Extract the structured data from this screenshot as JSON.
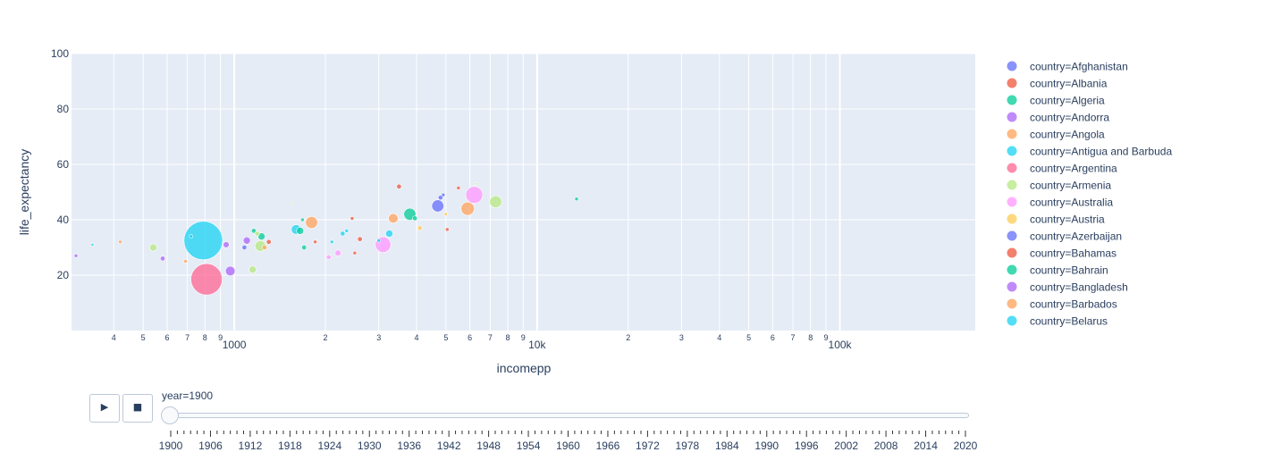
{
  "chart_data": {
    "type": "scatter",
    "xlabel": "incomepp",
    "ylabel": "life_expectancy",
    "x_scale": "log",
    "xlim": [
      290,
      280000
    ],
    "ylim": [
      0,
      100
    ],
    "y_ticks": [
      20,
      40,
      60,
      80,
      100
    ],
    "x_major_ticks": [
      {
        "value": 1000,
        "label": "1000"
      },
      {
        "value": 10000,
        "label": "10k"
      },
      {
        "value": 100000,
        "label": "100k"
      }
    ],
    "x_minor_ticks": [
      {
        "value": 400,
        "label": "4"
      },
      {
        "value": 500,
        "label": "5"
      },
      {
        "value": 600,
        "label": "6"
      },
      {
        "value": 700,
        "label": "7"
      },
      {
        "value": 800,
        "label": "8"
      },
      {
        "value": 900,
        "label": "9"
      },
      {
        "value": 2000,
        "label": "2"
      },
      {
        "value": 3000,
        "label": "3"
      },
      {
        "value": 4000,
        "label": "4"
      },
      {
        "value": 5000,
        "label": "5"
      },
      {
        "value": 6000,
        "label": "6"
      },
      {
        "value": 7000,
        "label": "7"
      },
      {
        "value": 8000,
        "label": "8"
      },
      {
        "value": 9000,
        "label": "9"
      },
      {
        "value": 20000,
        "label": "2"
      },
      {
        "value": 30000,
        "label": "3"
      },
      {
        "value": 40000,
        "label": "4"
      },
      {
        "value": 50000,
        "label": "5"
      },
      {
        "value": 60000,
        "label": "6"
      },
      {
        "value": 70000,
        "label": "7"
      },
      {
        "value": 80000,
        "label": "8"
      },
      {
        "value": 90000,
        "label": "9"
      }
    ],
    "grid": true,
    "legend_position": "right",
    "plot_background": "#e5ecf6",
    "series": [
      {
        "name": "country=Afghanistan",
        "color": "#636efa",
        "points": [
          {
            "x": 4700,
            "y": 45,
            "size": 5
          }
        ]
      },
      {
        "name": "country=Albania",
        "color": "#EF553B",
        "points": [
          {
            "x": 2600,
            "y": 33,
            "size": 2
          }
        ]
      },
      {
        "name": "country=Algeria",
        "color": "#00cc96",
        "points": [
          {
            "x": 3800,
            "y": 42,
            "size": 5
          }
        ]
      },
      {
        "name": "country=Andorra",
        "color": "#ab63fa",
        "points": [
          {
            "x": 970,
            "y": 21.5,
            "size": 4
          }
        ]
      },
      {
        "name": "country=Angola",
        "color": "#FFA15A",
        "points": [
          {
            "x": 5900,
            "y": 44,
            "size": 5.5
          }
        ]
      },
      {
        "name": "country=Antigua and Barbuda",
        "color": "#19d3f3",
        "points": [
          {
            "x": 1600,
            "y": 36.5,
            "size": 4
          }
        ]
      },
      {
        "name": "country=Argentina",
        "color": "#FF6692",
        "points": [
          {
            "x": 810,
            "y": 18.5,
            "size": 13
          }
        ]
      },
      {
        "name": "country=Armenia",
        "color": "#B6E880",
        "points": [
          {
            "x": 7300,
            "y": 46.5,
            "size": 5
          }
        ]
      },
      {
        "name": "country=Australia",
        "color": "#FF97FF",
        "points": [
          {
            "x": 6200,
            "y": 49,
            "size": 7
          },
          {
            "x": 3100,
            "y": 31,
            "size": 6.5
          }
        ]
      },
      {
        "name": "country=Austria",
        "color": "#FECB52",
        "points": [
          {
            "x": 4100,
            "y": 37,
            "size": 2
          }
        ]
      },
      {
        "name": "country=Azerbaijan",
        "color": "#636efa",
        "points": [
          {
            "x": 4800,
            "y": 48,
            "size": 2
          }
        ]
      },
      {
        "name": "country=Bahamas",
        "color": "#EF553B",
        "points": [
          {
            "x": 3500,
            "y": 52,
            "size": 2
          }
        ]
      },
      {
        "name": "country=Bahrain",
        "color": "#00cc96",
        "points": [
          {
            "x": 1230,
            "y": 34,
            "size": 3
          }
        ]
      },
      {
        "name": "country=Bangladesh",
        "color": "#ab63fa",
        "points": [
          {
            "x": 1100,
            "y": 32.5,
            "size": 3
          }
        ]
      },
      {
        "name": "country=Barbados",
        "color": "#FFA15A",
        "points": [
          {
            "x": 1800,
            "y": 39,
            "size": 5
          }
        ]
      },
      {
        "name": "country=Belarus",
        "color": "#19d3f3",
        "points": [
          {
            "x": 790,
            "y": 32.5,
            "size": 16
          }
        ]
      }
    ],
    "extra_points": [
      {
        "x": 300,
        "y": 27,
        "size": 1.5,
        "color": "#ab63fa"
      },
      {
        "x": 340,
        "y": 31,
        "size": 1.2,
        "color": "#19d3f3"
      },
      {
        "x": 420,
        "y": 32,
        "size": 1.5,
        "color": "#FFA15A"
      },
      {
        "x": 540,
        "y": 30,
        "size": 3,
        "color": "#B6E880"
      },
      {
        "x": 580,
        "y": 26,
        "size": 2,
        "color": "#ab63fa"
      },
      {
        "x": 690,
        "y": 25,
        "size": 1.5,
        "color": "#FFA15A"
      },
      {
        "x": 720,
        "y": 34,
        "size": 1.5,
        "color": "#19d3f3"
      },
      {
        "x": 940,
        "y": 31,
        "size": 2.5,
        "color": "#ab63fa"
      },
      {
        "x": 1080,
        "y": 30,
        "size": 2,
        "color": "#636efa"
      },
      {
        "x": 1150,
        "y": 22,
        "size": 3,
        "color": "#B6E880"
      },
      {
        "x": 1160,
        "y": 36,
        "size": 2,
        "color": "#00cc96"
      },
      {
        "x": 1190,
        "y": 35,
        "size": 2,
        "color": "#B6E880"
      },
      {
        "x": 1220,
        "y": 30.5,
        "size": 4.5,
        "color": "#B6E880"
      },
      {
        "x": 1260,
        "y": 30,
        "size": 2,
        "color": "#FFA15A"
      },
      {
        "x": 1300,
        "y": 32,
        "size": 2,
        "color": "#EF553B"
      },
      {
        "x": 1550,
        "y": 46,
        "size": 1,
        "color": "#B6E880"
      },
      {
        "x": 1650,
        "y": 36,
        "size": 3,
        "color": "#00cc96"
      },
      {
        "x": 1700,
        "y": 30,
        "size": 2,
        "color": "#00cc96"
      },
      {
        "x": 1680,
        "y": 40,
        "size": 1.5,
        "color": "#00cc96"
      },
      {
        "x": 1850,
        "y": 32,
        "size": 1.5,
        "color": "#EF553B"
      },
      {
        "x": 2050,
        "y": 26.5,
        "size": 2,
        "color": "#FF97FF"
      },
      {
        "x": 2100,
        "y": 32,
        "size": 1.5,
        "color": "#19d3f3"
      },
      {
        "x": 2200,
        "y": 28,
        "size": 2.5,
        "color": "#FF97FF"
      },
      {
        "x": 2280,
        "y": 35,
        "size": 2,
        "color": "#19d3f3"
      },
      {
        "x": 2350,
        "y": 36,
        "size": 1.5,
        "color": "#19d3f3"
      },
      {
        "x": 2450,
        "y": 40.5,
        "size": 1.5,
        "color": "#EF553B"
      },
      {
        "x": 2500,
        "y": 28,
        "size": 1.5,
        "color": "#EF553B"
      },
      {
        "x": 3000,
        "y": 32.5,
        "size": 1.5,
        "color": "#19d3f3"
      },
      {
        "x": 3250,
        "y": 35,
        "size": 3,
        "color": "#19d3f3"
      },
      {
        "x": 3350,
        "y": 40.5,
        "size": 4,
        "color": "#FFA15A"
      },
      {
        "x": 3950,
        "y": 40.5,
        "size": 2,
        "color": "#00cc96"
      },
      {
        "x": 4900,
        "y": 49,
        "size": 1.5,
        "color": "#636efa"
      },
      {
        "x": 5000,
        "y": 42,
        "size": 1.5,
        "color": "#FECB52"
      },
      {
        "x": 5050,
        "y": 36.5,
        "size": 1.5,
        "color": "#EF553B"
      },
      {
        "x": 5500,
        "y": 51.5,
        "size": 1.5,
        "color": "#EF553B"
      },
      {
        "x": 6300,
        "y": 53,
        "size": 1,
        "color": "#B6E880"
      },
      {
        "x": 13500,
        "y": 47.5,
        "size": 1.5,
        "color": "#00cc96"
      }
    ]
  },
  "legend": {
    "entries": [
      {
        "label": "country=Afghanistan",
        "color": "#636efa"
      },
      {
        "label": "country=Albania",
        "color": "#EF553B"
      },
      {
        "label": "country=Algeria",
        "color": "#00cc96"
      },
      {
        "label": "country=Andorra",
        "color": "#ab63fa"
      },
      {
        "label": "country=Angola",
        "color": "#FFA15A"
      },
      {
        "label": "country=Antigua and Barbuda",
        "color": "#19d3f3"
      },
      {
        "label": "country=Argentina",
        "color": "#FF6692"
      },
      {
        "label": "country=Armenia",
        "color": "#B6E880"
      },
      {
        "label": "country=Australia",
        "color": "#FF97FF"
      },
      {
        "label": "country=Austria",
        "color": "#FECB52"
      },
      {
        "label": "country=Azerbaijan",
        "color": "#636efa"
      },
      {
        "label": "country=Bahamas",
        "color": "#EF553B"
      },
      {
        "label": "country=Bahrain",
        "color": "#00cc96"
      },
      {
        "label": "country=Bangladesh",
        "color": "#ab63fa"
      },
      {
        "label": "country=Barbados",
        "color": "#FFA15A"
      },
      {
        "label": "country=Belarus",
        "color": "#19d3f3"
      }
    ]
  },
  "animation": {
    "play_icon": "play-icon",
    "stop_icon": "stop-icon",
    "play_glyph": "▶",
    "stop_glyph": "■",
    "current_label": "year=1900",
    "current_year": 1900,
    "year_min": 1900,
    "year_max": 2020,
    "labeled_years": [
      "1900",
      "1906",
      "1912",
      "1918",
      "1924",
      "1930",
      "1936",
      "1942",
      "1948",
      "1954",
      "1960",
      "1966",
      "1972",
      "1978",
      "1984",
      "1990",
      "1996",
      "2002",
      "2008",
      "2014",
      "2020"
    ]
  }
}
